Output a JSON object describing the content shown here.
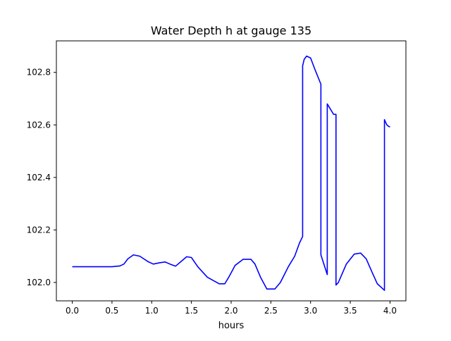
{
  "chart_data": {
    "type": "line",
    "title": "Water Depth h at gauge 135",
    "xlabel": "hours",
    "ylabel": "",
    "xlim": [
      -0.2,
      4.2
    ],
    "ylim": [
      101.93,
      102.92
    ],
    "xticks": [
      0.0,
      0.5,
      1.0,
      1.5,
      2.0,
      2.5,
      3.0,
      3.5,
      4.0
    ],
    "xtick_labels": [
      "0.0",
      "0.5",
      "1.0",
      "1.5",
      "2.0",
      "2.5",
      "3.0",
      "3.5",
      "4.0"
    ],
    "yticks": [
      102.0,
      102.2,
      102.4,
      102.6,
      102.8
    ],
    "ytick_labels": [
      "102.0",
      "102.2",
      "102.4",
      "102.6",
      "102.8"
    ],
    "grid": false,
    "series": [
      {
        "name": "",
        "color": "#0000ff",
        "x": [
          0.0,
          0.5,
          0.6,
          0.65,
          0.7,
          0.77,
          0.85,
          0.95,
          1.02,
          1.1,
          1.17,
          1.23,
          1.3,
          1.37,
          1.44,
          1.5,
          1.58,
          1.7,
          1.85,
          1.92,
          1.97,
          2.05,
          2.15,
          2.25,
          2.3,
          2.37,
          2.45,
          2.55,
          2.62,
          2.72,
          2.8,
          2.86,
          2.9,
          2.9,
          2.92,
          2.95,
          3.0,
          3.05,
          3.13,
          3.13,
          3.21,
          3.21,
          3.25,
          3.29,
          3.32,
          3.32,
          3.35,
          3.45,
          3.55,
          3.63,
          3.7,
          3.78,
          3.84,
          3.93,
          3.93,
          3.96,
          3.98,
          4.0
        ],
        "y": [
          102.06,
          102.06,
          102.063,
          102.07,
          102.09,
          102.105,
          102.1,
          102.08,
          102.07,
          102.075,
          102.078,
          102.07,
          102.062,
          102.08,
          102.098,
          102.095,
          102.06,
          102.02,
          101.995,
          101.995,
          102.02,
          102.065,
          102.088,
          102.088,
          102.07,
          102.02,
          101.975,
          101.975,
          102.0,
          102.06,
          102.1,
          102.15,
          102.175,
          102.825,
          102.85,
          102.862,
          102.855,
          102.815,
          102.755,
          102.105,
          102.03,
          102.68,
          102.66,
          102.64,
          102.64,
          101.99,
          102.0,
          102.07,
          102.108,
          102.112,
          102.09,
          102.035,
          101.995,
          101.97,
          102.62,
          102.6,
          102.595,
          102.592
        ]
      }
    ]
  }
}
